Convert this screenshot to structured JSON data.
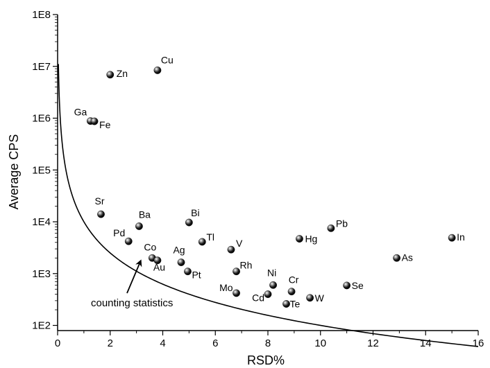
{
  "chart_data": {
    "type": "scatter",
    "xlabel": "RSD%",
    "ylabel": "Average CPS",
    "xlim": [
      0,
      16
    ],
    "ylim_log10": [
      1.9,
      8
    ],
    "y_scale": "log",
    "x_ticks": [
      0,
      2,
      4,
      6,
      8,
      10,
      12,
      14,
      16
    ],
    "x_tick_labels": [
      "0",
      "2",
      "4",
      "6",
      "8",
      "10",
      "12",
      "14",
      "16"
    ],
    "y_ticks": [
      100,
      1000,
      10000,
      100000,
      1000000,
      10000000,
      100000000
    ],
    "y_tick_labels": [
      "1E2",
      "1E3",
      "1E4",
      "1E5",
      "1E6",
      "1E7",
      "1E8"
    ],
    "grid": false,
    "points": [
      {
        "label": "Zn",
        "x": 2.0,
        "y": 6900000
      },
      {
        "label": "Cu",
        "x": 3.8,
        "y": 8400000
      },
      {
        "label": "Ga",
        "x": 1.25,
        "y": 880000
      },
      {
        "label": "Fe",
        "x": 1.4,
        "y": 870000
      },
      {
        "label": "Sr",
        "x": 1.65,
        "y": 14000
      },
      {
        "label": "Ba",
        "x": 3.1,
        "y": 8200
      },
      {
        "label": "Pd",
        "x": 2.7,
        "y": 4200
      },
      {
        "label": "Bi",
        "x": 5.0,
        "y": 9700
      },
      {
        "label": "Tl",
        "x": 5.5,
        "y": 4100
      },
      {
        "label": "V",
        "x": 6.6,
        "y": 2900
      },
      {
        "label": "Co",
        "x": 3.6,
        "y": 2000
      },
      {
        "label": "Au",
        "x": 3.8,
        "y": 1800
      },
      {
        "label": "Ag",
        "x": 4.7,
        "y": 1650
      },
      {
        "label": "Pt",
        "x": 4.95,
        "y": 1100
      },
      {
        "label": "Rh",
        "x": 6.8,
        "y": 1100
      },
      {
        "label": "Mo",
        "x": 6.8,
        "y": 420
      },
      {
        "label": "Cd",
        "x": 8.0,
        "y": 400
      },
      {
        "label": "Ni",
        "x": 8.2,
        "y": 600
      },
      {
        "label": "Te",
        "x": 8.7,
        "y": 260
      },
      {
        "label": "Cr",
        "x": 8.9,
        "y": 450
      },
      {
        "label": "W",
        "x": 9.6,
        "y": 340
      },
      {
        "label": "Hg",
        "x": 9.2,
        "y": 4700
      },
      {
        "label": "Pb",
        "x": 10.4,
        "y": 7500
      },
      {
        "label": "Se",
        "x": 11.0,
        "y": 590
      },
      {
        "label": "As",
        "x": 12.9,
        "y": 2000
      },
      {
        "label": "In",
        "x": 15.0,
        "y": 4900
      }
    ],
    "curve": {
      "name": "counting statistics",
      "relation": "y = (100 / x)^2",
      "x_start": 0.03,
      "x_end": 16
    },
    "annotation": "counting statistics"
  }
}
